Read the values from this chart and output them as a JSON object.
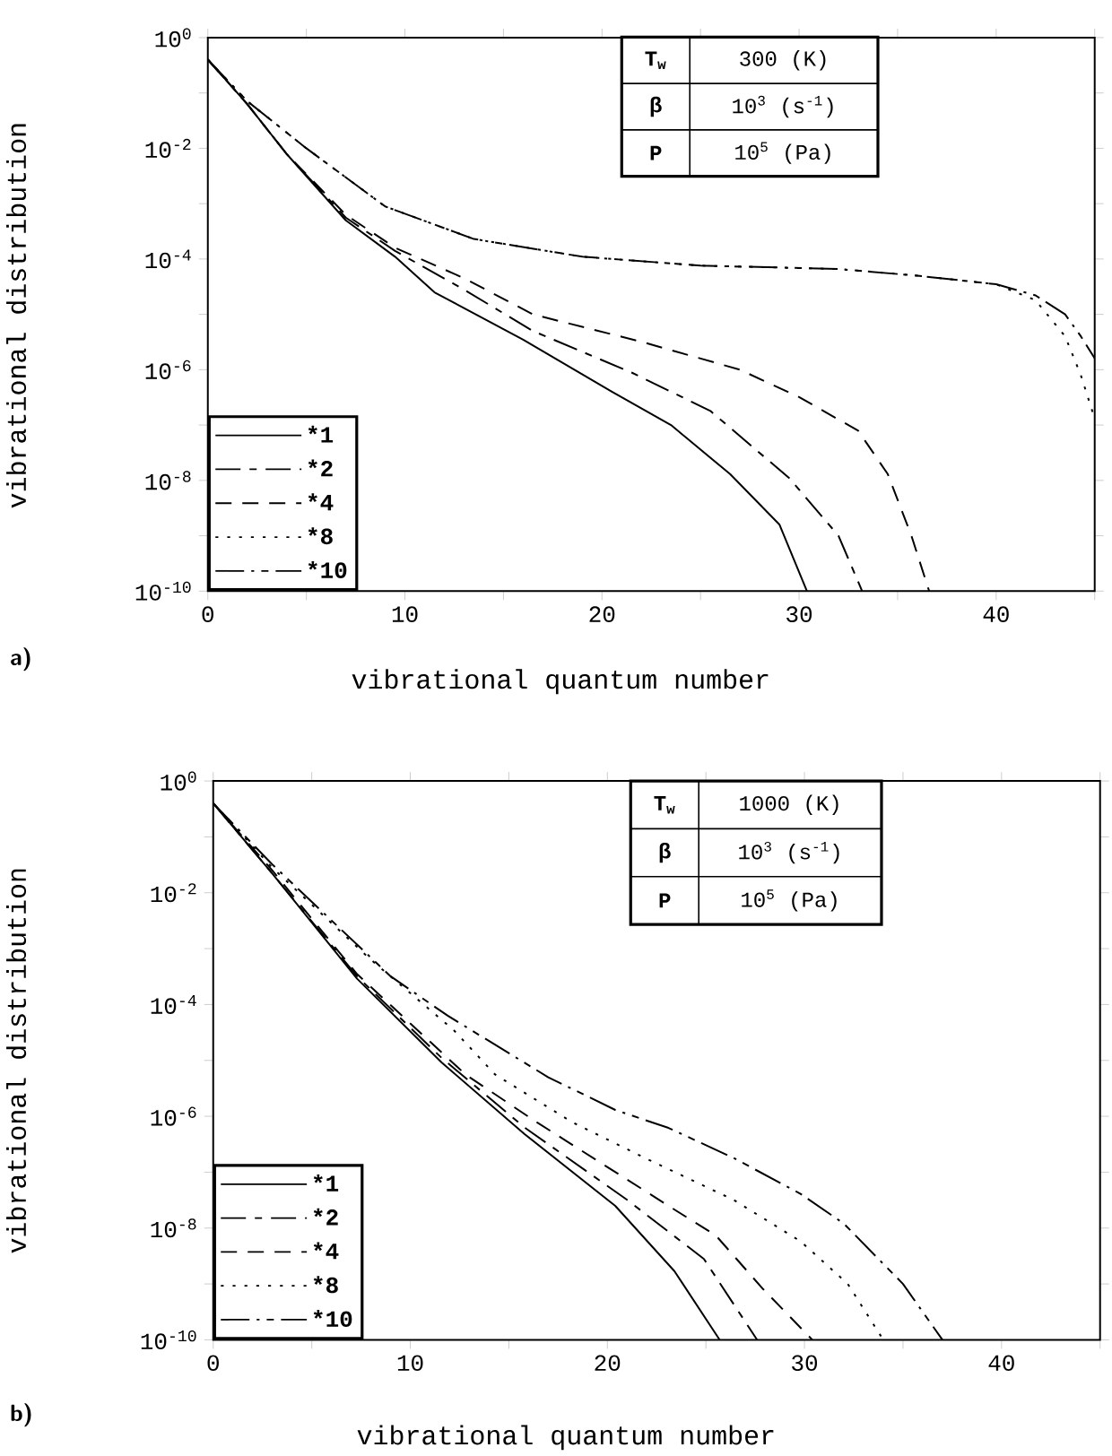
{
  "chart_data": [
    {
      "type": "line",
      "xlabel": "vibrational quantum number",
      "ylabel": "vibrational distribution",
      "log": true,
      "legend": "bottom left",
      "xlim": [
        0,
        45
      ],
      "ylim": [
        1e-10,
        1
      ],
      "xticks": [
        0,
        {
          "value": 5,
          "label": null
        },
        10,
        {
          "value": 15,
          "label": null
        },
        20,
        {
          "value": 25,
          "label": null
        },
        30,
        {
          "value": 35,
          "label": null
        },
        40,
        {
          "value": 45,
          "label": null
        }
      ],
      "yticks": [
        {
          "value": 1e-10,
          "label": "10$^{-10}$"
        },
        {
          "value": 1e-09,
          "label": null
        },
        {
          "value": 1e-08,
          "label": "10$^{-8}$"
        },
        {
          "value": 1e-07,
          "label": null
        },
        {
          "value": 1e-06,
          "label": "10$^{-6}$"
        },
        {
          "value": 1e-05,
          "label": null
        },
        {
          "value": 0.0001,
          "label": "10$^{-4}$"
        },
        {
          "value": 0.001,
          "label": null
        },
        {
          "value": 0.01,
          "label": "10$^{-2}$"
        },
        {
          "value": 0.1,
          "label": null
        },
        {
          "value": 1,
          "label": "10$^{0}$"
        }
      ],
      "annotations": [
        "a)",
        "T$_{w}$",
        "300 (K)",
        "β",
        "10$^{3}$ (s$^{-1}$)",
        "P",
        "10$^{5}$ (Pa)"
      ],
      "series": [
        {
          "name": "*1",
          "color": "#000000",
          "line_style": "solid",
          "x": [
            0,
            2,
            4,
            7,
            9.5,
            11.5,
            16,
            20.5,
            23.5,
            26.5,
            29,
            30.4
          ],
          "values": [
            0.4,
            0.063,
            0.0079,
            0.0005,
            0.00011,
            2.5e-05,
            3.5e-06,
            4e-07,
            1e-07,
            1.3e-08,
            1.6e-09,
            1e-10
          ]
        },
        {
          "name": "*2",
          "color": "#000000",
          "line_style": "dashdot",
          "x": [
            0,
            2,
            4,
            7,
            9.5,
            13,
            16.5,
            21.5,
            25.5,
            29.5,
            32,
            33.2
          ],
          "values": [
            0.4,
            0.063,
            0.0079,
            0.00056,
            0.00014,
            2.8e-05,
            5e-06,
            8.9e-07,
            1.8e-07,
            1.1e-08,
            1e-09,
            1e-10
          ]
        },
        {
          "name": "*4",
          "color": "#000000",
          "line_style": "dashed",
          "x": [
            0,
            2,
            4,
            7,
            9.5,
            13,
            16.5,
            22,
            27,
            30,
            33,
            34.5,
            35.7,
            36.6
          ],
          "values": [
            0.4,
            0.063,
            0.0079,
            0.00063,
            0.00016,
            4.5e-05,
            1e-05,
            3.2e-06,
            1e-06,
            3.2e-07,
            7.9e-08,
            1.3e-08,
            1e-09,
            1e-10
          ]
        },
        {
          "name": "*8",
          "color": "#000000",
          "line_style": "dotted",
          "x": [
            0,
            2,
            5,
            9,
            13.5,
            19,
            25,
            32,
            36,
            40,
            42,
            43.5,
            44.3,
            45
          ],
          "values": [
            0.4,
            0.071,
            0.01,
            0.00089,
            0.00023,
            0.00011,
            7.6e-05,
            6.6e-05,
            5e-05,
            3.5e-05,
            1.8e-05,
            4e-06,
            7.9e-07,
            1.3e-07
          ]
        },
        {
          "name": "*10",
          "color": "#000000",
          "line_style": "dashdotdot",
          "x": [
            0,
            2,
            5,
            9,
            13.5,
            19,
            25,
            32,
            36,
            40,
            42,
            43.5,
            44.3,
            45
          ],
          "values": [
            0.4,
            0.071,
            0.01,
            0.00089,
            0.00023,
            0.00011,
            7.6e-05,
            6.6e-05,
            5e-05,
            3.5e-05,
            2.2e-05,
            1e-05,
            4e-06,
            1.6e-06
          ]
        }
      ]
    },
    {
      "type": "line",
      "xlabel": "vibrational quantum number",
      "ylabel": "vibrational distribution",
      "log": true,
      "legend": "bottom left",
      "xlim": [
        0,
        45
      ],
      "ylim": [
        1e-10,
        1
      ],
      "xticks": [
        0,
        {
          "value": 5,
          "label": null
        },
        10,
        {
          "value": 15,
          "label": null
        },
        20,
        {
          "value": 25,
          "label": null
        },
        30,
        {
          "value": 35,
          "label": null
        },
        40,
        {
          "value": 45,
          "label": null
        }
      ],
      "yticks": [
        {
          "value": 1e-10,
          "label": "10$^{-10}$"
        },
        {
          "value": 1e-09,
          "label": null
        },
        {
          "value": 1e-08,
          "label": "10$^{-8}$"
        },
        {
          "value": 1e-07,
          "label": null
        },
        {
          "value": 1e-06,
          "label": "10$^{-6}$"
        },
        {
          "value": 1e-05,
          "label": null
        },
        {
          "value": 0.0001,
          "label": "10$^{-4}$"
        },
        {
          "value": 0.001,
          "label": null
        },
        {
          "value": 0.01,
          "label": "10$^{-2}$"
        },
        {
          "value": 0.1,
          "label": null
        },
        {
          "value": 1,
          "label": "10$^{0}$"
        }
      ],
      "annotations": [
        "b)",
        "T$_{w}$",
        "1000 (K)",
        "β",
        "10$^{3}$ (s$^{-1}$)",
        "P",
        "10$^{5}$ (Pa)"
      ],
      "series": [
        {
          "name": "*1",
          "color": "#000000",
          "line_style": "solid",
          "x": [
            0,
            3,
            7.3,
            11.6,
            15.8,
            20.4,
            23.4,
            25.7
          ],
          "values": [
            0.4,
            0.022,
            0.00029,
            9.1e-06,
            4.8e-07,
            2.5e-08,
            1.7e-09,
            1e-10
          ]
        },
        {
          "name": "*2",
          "color": "#000000",
          "line_style": "dashdot",
          "x": [
            0,
            3,
            7.3,
            11.6,
            15.8,
            21,
            24.9,
            27.6
          ],
          "values": [
            0.4,
            0.022,
            0.00032,
            1.1e-05,
            6.3e-07,
            3.2e-08,
            2.8e-09,
            1e-10
          ]
        },
        {
          "name": "*4",
          "color": "#000000",
          "line_style": "dashed",
          "x": [
            0,
            3,
            7.3,
            12.8,
            16.4,
            23.1,
            25.5,
            27.9,
            30.4
          ],
          "values": [
            0.4,
            0.025,
            0.00035,
            5.6e-06,
            7.9e-07,
            2.5e-08,
            7.4e-09,
            8.1e-10,
            1e-10
          ]
        },
        {
          "name": "*8",
          "color": "#000000",
          "line_style": "dotted",
          "x": [
            0,
            3,
            7.9,
            12.2,
            14.3,
            18.2,
            21.9,
            26.4,
            29.8,
            32.2,
            34
          ],
          "values": [
            0.4,
            0.028,
            0.00068,
            3.5e-05,
            5.6e-06,
            7.9e-07,
            1.8e-07,
            3.2e-08,
            5.8e-09,
            1e-09,
            1e-10
          ]
        },
        {
          "name": "*10",
          "color": "#000000",
          "line_style": "dashdotdot",
          "x": [
            0,
            3,
            9,
            11.9,
            17,
            20.4,
            23.1,
            26.4,
            29.8,
            32,
            35,
            37
          ],
          "values": [
            0.4,
            0.032,
            0.00032,
            6.3e-05,
            5e-06,
            1.3e-06,
            6.2e-07,
            1.8e-07,
            4.1e-08,
            1.2e-08,
            1e-09,
            1e-10
          ]
        }
      ]
    }
  ]
}
